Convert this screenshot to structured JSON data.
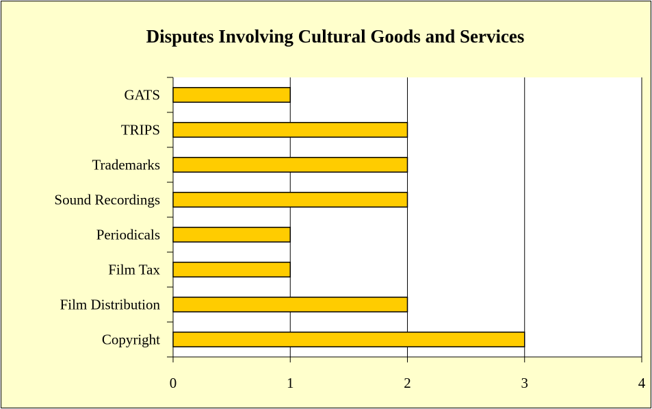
{
  "chart_data": {
    "type": "bar",
    "orientation": "horizontal",
    "title": "Disputes Involving Cultural Goods and Services",
    "xlabel": "",
    "ylabel": "",
    "categories": [
      "GATS",
      "TRIPS",
      "Trademarks",
      "Sound Recordings",
      "Periodicals",
      "Film Tax",
      "Film Distribution",
      "Copyright"
    ],
    "values": [
      1,
      2,
      2,
      2,
      1,
      1,
      2,
      3
    ],
    "xlim": [
      0,
      4
    ],
    "xticks": [
      "0",
      "1",
      "2",
      "3",
      "4"
    ],
    "grid": "vertical",
    "legend": "none",
    "colors": {
      "background": "#ffffcc",
      "plot_area": "#ffffff",
      "bar_fill": "#ffcc00",
      "bar_stroke": "#000000",
      "gridline": "#000000"
    }
  }
}
